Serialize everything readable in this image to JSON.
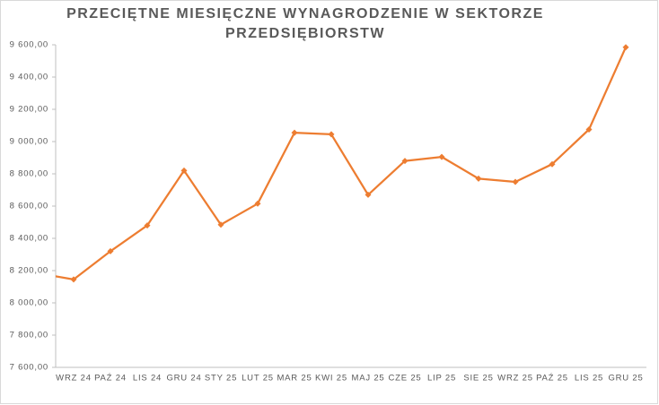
{
  "chart_data": {
    "type": "line",
    "title": [
      "PRZECIĘTNE MIESIĘCZNE WYNAGRODZENIE W SEKTORZE",
      "PRZEDSIĘBIORSTW"
    ],
    "categories": [
      null,
      "WRZ 24",
      "PAŹ 24",
      "LIS 24",
      "GRU 24",
      "STY 25",
      "LUT 25",
      "MAR 25",
      "KWI 25",
      "MAJ 25",
      "CZE 25",
      "LIP 25",
      "SIE 25",
      "WRZ 25",
      "PAŹ 25",
      "LIS 25",
      "GRU 25"
    ],
    "series": [
      {
        "color": "#ED7D31",
        "values": [
          8185,
          8145,
          8320,
          8480,
          8820,
          8485,
          8615,
          9055,
          9045,
          8670,
          8880,
          8905,
          8770,
          8750,
          8860,
          9075,
          9585
        ]
      }
    ],
    "ylim": [
      7600,
      9600
    ],
    "yticks": [
      {
        "value": 7600,
        "label": "7 600,00"
      },
      {
        "value": 7800,
        "label": "7 800,00"
      },
      {
        "value": 8000,
        "label": "8 000,00"
      },
      {
        "value": 8200,
        "label": "8 200,00"
      },
      {
        "value": 8400,
        "label": "8 400,00"
      },
      {
        "value": 8600,
        "label": "8 600,00"
      },
      {
        "value": 8800,
        "label": "8 800,00"
      },
      {
        "value": 9000,
        "label": "9 000,00"
      },
      {
        "value": 9200,
        "label": "9 200,00"
      },
      {
        "value": 9400,
        "label": "9 400,00"
      },
      {
        "value": 9600,
        "label": "9 600,00"
      }
    ]
  }
}
